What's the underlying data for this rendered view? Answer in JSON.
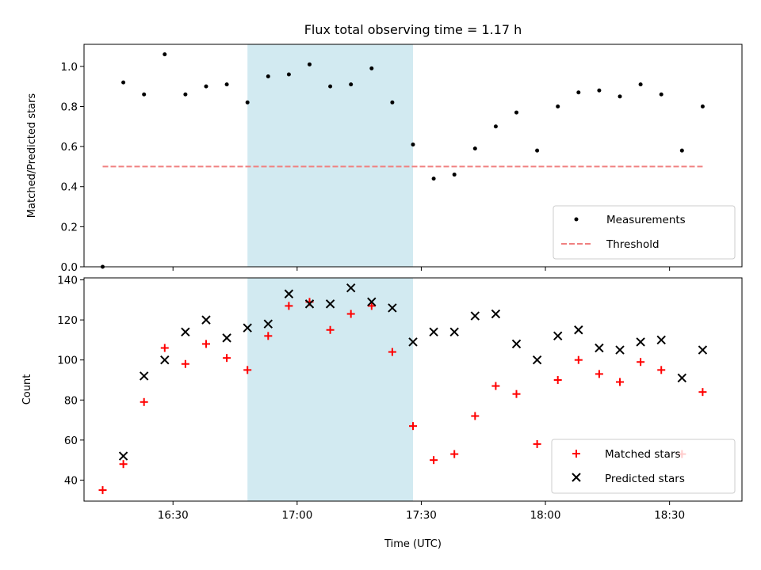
{
  "chart_data": [
    {
      "type": "scatter",
      "title": "Flux total observing time = 1.17 h",
      "xlabel": "",
      "ylabel": "Matched/Predicted stars",
      "ylim": [
        0,
        1.11
      ],
      "yticks": [
        "0.0",
        "0.2",
        "0.4",
        "0.6",
        "0.8",
        "1.0"
      ],
      "shaded_span": {
        "start_min": 1008,
        "end_min": 1048,
        "color": "#add8e6"
      },
      "threshold": {
        "name": "Threshold",
        "value": 0.5,
        "x_start_min": 973,
        "x_end_min": 1118,
        "color": "#f08080"
      },
      "series": [
        {
          "name": "Measurements",
          "marker": "dot",
          "color": "#000000",
          "x_min": [
            973,
            978,
            983,
            988,
            993,
            998,
            1003,
            1008,
            1013,
            1018,
            1023,
            1028,
            1033,
            1038,
            1043,
            1048,
            1053,
            1058,
            1063,
            1068,
            1073,
            1078,
            1083,
            1088,
            1093,
            1098,
            1103,
            1108,
            1113,
            1118
          ],
          "y": [
            0.0,
            0.92,
            0.86,
            1.06,
            0.86,
            0.9,
            0.91,
            0.82,
            0.95,
            0.96,
            1.01,
            0.9,
            0.91,
            0.99,
            0.82,
            0.61,
            0.44,
            0.46,
            0.59,
            0.7,
            0.77,
            0.58,
            0.8,
            0.87,
            0.88,
            0.85,
            0.91,
            0.86,
            0.58,
            0.8
          ]
        }
      ],
      "legend": {
        "placement": "lower right",
        "entries": [
          "Measurements",
          "Threshold"
        ]
      }
    },
    {
      "type": "scatter",
      "title": "",
      "xlabel": "Time (UTC)",
      "ylabel": "Count",
      "ylim": [
        29.5,
        141
      ],
      "yticks": [
        "40",
        "60",
        "80",
        "100",
        "120",
        "140"
      ],
      "xlim_min": [
        968.5,
        1127.5
      ],
      "xticks": [
        {
          "label": "16:30",
          "min": 990
        },
        {
          "label": "17:00",
          "min": 1020
        },
        {
          "label": "17:30",
          "min": 1050
        },
        {
          "label": "18:00",
          "min": 1080
        },
        {
          "label": "18:30",
          "min": 1110
        }
      ],
      "shaded_span": {
        "start_min": 1008,
        "end_min": 1048,
        "color": "#add8e6"
      },
      "series": [
        {
          "name": "Matched stars",
          "marker": "plus",
          "color": "#ff0000",
          "x_min": [
            973,
            978,
            983,
            988,
            993,
            998,
            1003,
            1008,
            1013,
            1018,
            1023,
            1028,
            1033,
            1038,
            1043,
            1048,
            1053,
            1058,
            1063,
            1068,
            1073,
            1078,
            1083,
            1088,
            1093,
            1098,
            1103,
            1108,
            1113,
            1118
          ],
          "y": [
            35,
            48,
            79,
            106,
            98,
            108,
            101,
            95,
            112,
            127,
            129,
            115,
            123,
            127,
            104,
            67,
            50,
            53,
            72,
            87,
            83,
            58,
            90,
            100,
            93,
            89,
            99,
            95,
            53,
            84
          ]
        },
        {
          "name": "Predicted stars",
          "marker": "x",
          "color": "#000000",
          "x_min": [
            978,
            983,
            988,
            993,
            998,
            1003,
            1008,
            1013,
            1018,
            1023,
            1028,
            1033,
            1038,
            1043,
            1048,
            1053,
            1058,
            1063,
            1068,
            1073,
            1078,
            1083,
            1088,
            1093,
            1098,
            1103,
            1108,
            1113,
            1118
          ],
          "y": [
            52,
            92,
            100,
            114,
            120,
            111,
            116,
            118,
            133,
            128,
            128,
            136,
            129,
            126,
            109,
            114,
            114,
            122,
            123,
            108,
            100,
            112,
            115,
            106,
            105,
            109,
            110,
            91,
            105
          ]
        }
      ],
      "legend": {
        "placement": "lower right",
        "entries": [
          "Matched stars",
          "Predicted stars"
        ]
      }
    }
  ]
}
